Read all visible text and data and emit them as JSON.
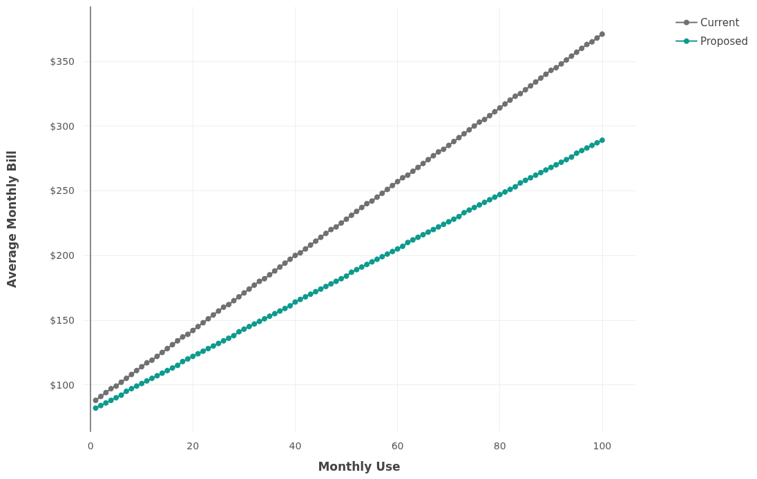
{
  "chart_data": {
    "type": "line",
    "xlabel": "Monthly Use",
    "ylabel": "Average Monthly Bill",
    "x": [
      1,
      2,
      3,
      4,
      5,
      6,
      7,
      8,
      9,
      10,
      11,
      12,
      13,
      14,
      15,
      16,
      17,
      18,
      19,
      20,
      21,
      22,
      23,
      24,
      25,
      26,
      27,
      28,
      29,
      30,
      31,
      32,
      33,
      34,
      35,
      36,
      37,
      38,
      39,
      40,
      41,
      42,
      43,
      44,
      45,
      46,
      47,
      48,
      49,
      50,
      51,
      52,
      53,
      54,
      55,
      56,
      57,
      58,
      59,
      60,
      61,
      62,
      63,
      64,
      65,
      66,
      67,
      68,
      69,
      70,
      71,
      72,
      73,
      74,
      75,
      76,
      77,
      78,
      79,
      80,
      81,
      82,
      83,
      84,
      85,
      86,
      87,
      88,
      89,
      90,
      91,
      92,
      93,
      94,
      95,
      96,
      97,
      98,
      99,
      100
    ],
    "series": [
      {
        "name": "Current",
        "color": "#707070",
        "values": [
          88,
          91,
          94,
          97,
          99,
          102,
          105,
          108,
          111,
          114,
          117,
          119,
          122,
          125,
          128,
          131,
          134,
          137,
          139,
          142,
          145,
          148,
          151,
          154,
          157,
          160,
          162,
          165,
          168,
          171,
          174,
          177,
          180,
          182,
          185,
          188,
          191,
          194,
          197,
          200,
          202,
          205,
          208,
          211,
          214,
          217,
          220,
          222,
          225,
          228,
          231,
          234,
          237,
          240,
          242,
          245,
          248,
          251,
          254,
          257,
          260,
          262,
          265,
          268,
          271,
          274,
          277,
          280,
          282,
          285,
          288,
          291,
          294,
          297,
          300,
          303,
          305,
          308,
          311,
          314,
          317,
          320,
          323,
          325,
          328,
          331,
          334,
          337,
          340,
          343,
          345,
          348,
          351,
          354,
          357,
          360,
          363,
          365,
          368,
          371
        ]
      },
      {
        "name": "Proposed",
        "color": "#0e9a8e",
        "values": [
          82,
          84,
          86,
          88,
          90,
          92,
          95,
          97,
          99,
          101,
          103,
          105,
          107,
          109,
          111,
          113,
          115,
          118,
          120,
          122,
          124,
          126,
          128,
          130,
          132,
          134,
          136,
          138,
          141,
          143,
          145,
          147,
          149,
          151,
          153,
          155,
          157,
          159,
          161,
          164,
          166,
          168,
          170,
          172,
          174,
          176,
          178,
          180,
          182,
          184,
          187,
          189,
          191,
          193,
          195,
          197,
          199,
          201,
          203,
          205,
          207,
          210,
          212,
          214,
          216,
          218,
          220,
          222,
          224,
          226,
          228,
          230,
          233,
          235,
          237,
          239,
          241,
          243,
          245,
          247,
          249,
          251,
          253,
          256,
          258,
          260,
          262,
          264,
          266,
          268,
          270,
          272,
          274,
          276,
          279,
          281,
          283,
          285,
          287,
          289
        ]
      }
    ],
    "xlim": [
      -1.5,
      106.5
    ],
    "xticks": [
      0,
      20,
      40,
      60,
      80,
      100
    ],
    "ylim": [
      64,
      392
    ],
    "yticks": [
      {
        "value": 100,
        "label": "$100"
      },
      {
        "value": 150,
        "label": "$150"
      },
      {
        "value": 200,
        "label": "$200"
      },
      {
        "value": 250,
        "label": "$250"
      },
      {
        "value": 300,
        "label": "$300"
      },
      {
        "value": 350,
        "label": "$350"
      }
    ],
    "grid": true,
    "legend": "top right",
    "marker": "circle",
    "line_style": "solid"
  }
}
